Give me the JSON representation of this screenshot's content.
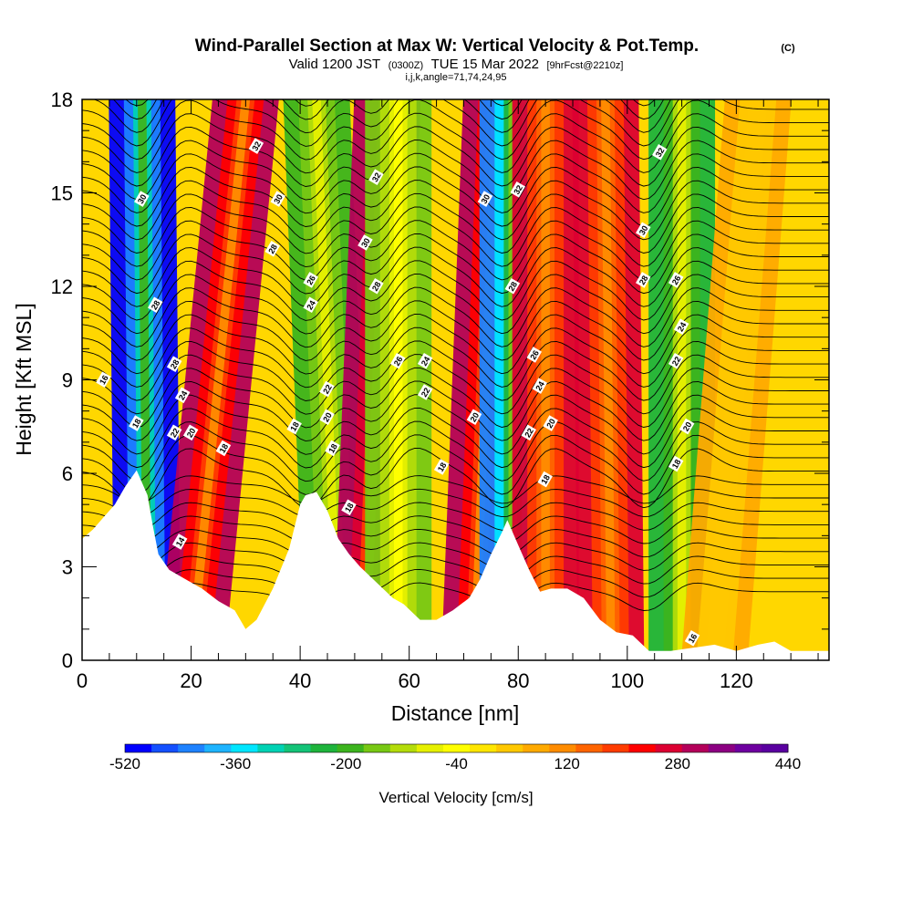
{
  "chart_data": {
    "type": "heatmap",
    "title": "Wind-Parallel Section at Max W: Vertical Velocity & Pot.Temp.",
    "title_mark": "(C)",
    "subtitle": {
      "part1": "Valid 1200 JST",
      "part2": "(0300Z)",
      "part3": "TUE 15 Mar 2022",
      "part4": "[9hrFcst@2210z]"
    },
    "subtitle2": "i,j,k,angle=71,74,24,95",
    "xlabel": "Distance [nm]",
    "ylabel": "Height [Kft MSL]",
    "xlim": [
      0,
      137
    ],
    "ylim": [
      0,
      18
    ],
    "x_ticks": [
      0,
      20,
      40,
      60,
      80,
      100,
      120
    ],
    "y_ticks": [
      0,
      3,
      6,
      9,
      12,
      15,
      18
    ],
    "colorbar": {
      "title": "Vertical Velocity [cm/s]",
      "labels": [
        "-520",
        "-360",
        "-200",
        "-40",
        "120",
        "280",
        "440"
      ],
      "colors": [
        "#0000ff",
        "#1450ff",
        "#1e82ff",
        "#1eb4ff",
        "#00e6ff",
        "#00d2b4",
        "#14c378",
        "#1eb43c",
        "#3cb41e",
        "#78c814",
        "#b4dc0a",
        "#e6f000",
        "#ffff00",
        "#ffe600",
        "#ffc800",
        "#ffaa00",
        "#ff8c00",
        "#ff6400",
        "#ff3c00",
        "#ff0000",
        "#dc0032",
        "#b4005a",
        "#8c0082",
        "#6e00a0",
        "#5a00a0"
      ]
    },
    "terrain": [
      [
        0,
        3.9
      ],
      [
        2,
        4.2
      ],
      [
        4,
        4.6
      ],
      [
        6,
        5.0
      ],
      [
        8,
        5.6
      ],
      [
        10,
        6.1
      ],
      [
        12,
        5.3
      ],
      [
        13,
        4.3
      ],
      [
        14,
        3.4
      ],
      [
        16,
        2.9
      ],
      [
        19,
        2.6
      ],
      [
        22,
        2.3
      ],
      [
        25,
        1.9
      ],
      [
        28,
        1.6
      ],
      [
        30,
        1.0
      ],
      [
        32,
        1.3
      ],
      [
        35,
        2.3
      ],
      [
        38,
        3.6
      ],
      [
        40,
        5.0
      ],
      [
        41,
        5.3
      ],
      [
        43,
        5.4
      ],
      [
        45,
        4.8
      ],
      [
        47,
        3.9
      ],
      [
        49,
        3.4
      ],
      [
        51,
        3.0
      ],
      [
        54,
        2.5
      ],
      [
        57,
        2.0
      ],
      [
        59,
        1.8
      ],
      [
        62,
        1.3
      ],
      [
        65,
        1.3
      ],
      [
        68,
        1.6
      ],
      [
        71,
        2.0
      ],
      [
        73,
        2.6
      ],
      [
        75,
        3.4
      ],
      [
        77,
        4.1
      ],
      [
        78,
        4.5
      ],
      [
        80,
        3.7
      ],
      [
        82,
        2.9
      ],
      [
        84,
        2.2
      ],
      [
        86,
        2.3
      ],
      [
        89,
        2.3
      ],
      [
        92,
        2.0
      ],
      [
        95,
        1.3
      ],
      [
        98,
        0.9
      ],
      [
        101,
        0.8
      ],
      [
        104,
        0.3
      ],
      [
        108,
        0.3
      ],
      [
        112,
        0.4
      ],
      [
        116,
        0.5
      ],
      [
        120,
        0.3
      ],
      [
        124,
        0.5
      ],
      [
        127,
        0.6
      ],
      [
        130,
        0.3
      ],
      [
        134,
        0.3
      ],
      [
        137,
        0.3
      ]
    ],
    "updraft_bands": [
      {
        "sign": "down",
        "x_bottom": 12,
        "x_top": 11,
        "w": -520
      },
      {
        "sign": "up",
        "x_bottom": 20,
        "x_top": 30,
        "w": 300
      },
      {
        "sign": "down",
        "x_bottom": 47,
        "x_top": 43,
        "w": -200
      },
      {
        "sign": "up",
        "x_bottom": 52,
        "x_top": 56,
        "w": 320
      },
      {
        "sign": "down",
        "x_bottom": 58,
        "x_top": 58,
        "w": -160
      },
      {
        "sign": "up",
        "x_bottom": 72,
        "x_top": 76,
        "w": 300
      },
      {
        "sign": "down",
        "x_bottom": 79,
        "x_top": 79,
        "w": -440
      },
      {
        "sign": "up",
        "x_bottom": 85,
        "x_top": 85,
        "w": 260
      },
      {
        "sign": "up",
        "x_bottom": 97,
        "x_top": 96,
        "w": 260
      },
      {
        "sign": "down",
        "x_bottom": 110,
        "x_top": 110,
        "w": -240
      },
      {
        "sign": "up",
        "x_bottom": 116,
        "x_top": 124,
        "w": 60
      }
    ],
    "theta_labels": [
      {
        "text": "32",
        "x": 32,
        "y": 16.5
      },
      {
        "text": "30",
        "x": 11,
        "y": 14.8
      },
      {
        "text": "30",
        "x": 36,
        "y": 14.8
      },
      {
        "text": "28",
        "x": 35,
        "y": 13.2
      },
      {
        "text": "28",
        "x": 13.5,
        "y": 11.4
      },
      {
        "text": "26",
        "x": 42,
        "y": 12.2
      },
      {
        "text": "24",
        "x": 42,
        "y": 11.4
      },
      {
        "text": "28",
        "x": 17,
        "y": 9.5
      },
      {
        "text": "24",
        "x": 18.5,
        "y": 8.5
      },
      {
        "text": "22",
        "x": 17,
        "y": 7.3
      },
      {
        "text": "20",
        "x": 20,
        "y": 7.3
      },
      {
        "text": "18",
        "x": 10,
        "y": 7.6
      },
      {
        "text": "18",
        "x": 26,
        "y": 6.8
      },
      {
        "text": "16",
        "x": 4,
        "y": 9.0
      },
      {
        "text": "14",
        "x": 18,
        "y": 3.8
      },
      {
        "text": "18",
        "x": 39,
        "y": 7.5
      },
      {
        "text": "22",
        "x": 45,
        "y": 8.7
      },
      {
        "text": "20",
        "x": 45,
        "y": 7.8
      },
      {
        "text": "18",
        "x": 46,
        "y": 6.8
      },
      {
        "text": "18",
        "x": 49,
        "y": 4.9
      },
      {
        "text": "32",
        "x": 54,
        "y": 15.5
      },
      {
        "text": "30",
        "x": 52,
        "y": 13.4
      },
      {
        "text": "28",
        "x": 54,
        "y": 12.0
      },
      {
        "text": "26",
        "x": 58,
        "y": 9.6
      },
      {
        "text": "24",
        "x": 63,
        "y": 9.6
      },
      {
        "text": "22",
        "x": 63,
        "y": 8.6
      },
      {
        "text": "18",
        "x": 66,
        "y": 6.2
      },
      {
        "text": "20",
        "x": 72,
        "y": 7.8
      },
      {
        "text": "30",
        "x": 74,
        "y": 14.8
      },
      {
        "text": "32",
        "x": 80,
        "y": 15.1
      },
      {
        "text": "28",
        "x": 79,
        "y": 12.0
      },
      {
        "text": "26",
        "x": 83,
        "y": 9.8
      },
      {
        "text": "24",
        "x": 84,
        "y": 8.8
      },
      {
        "text": "22",
        "x": 82,
        "y": 7.3
      },
      {
        "text": "20",
        "x": 86,
        "y": 7.6
      },
      {
        "text": "18",
        "x": 85,
        "y": 5.8
      },
      {
        "text": "32",
        "x": 106,
        "y": 16.3
      },
      {
        "text": "30",
        "x": 103,
        "y": 13.8
      },
      {
        "text": "28",
        "x": 103,
        "y": 12.2
      },
      {
        "text": "26",
        "x": 109,
        "y": 12.2
      },
      {
        "text": "24",
        "x": 110,
        "y": 10.7
      },
      {
        "text": "22",
        "x": 109,
        "y": 9.6
      },
      {
        "text": "20",
        "x": 111,
        "y": 7.5
      },
      {
        "text": "18",
        "x": 109,
        "y": 6.3
      },
      {
        "text": "16",
        "x": 112,
        "y": 0.7
      }
    ]
  }
}
